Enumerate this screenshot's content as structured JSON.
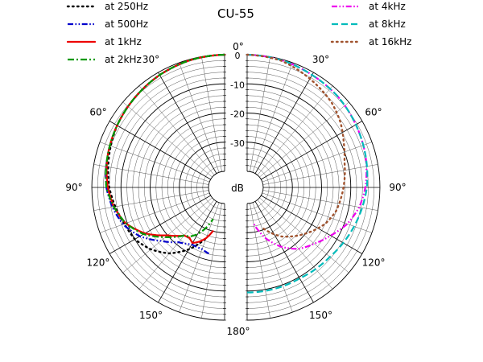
{
  "chart_data": {
    "type": "polar-line",
    "title": "CU-55",
    "r_unit_label": "dB",
    "r_ticks": [
      "0",
      "-10",
      "-20",
      "-30"
    ],
    "r_range": [
      -40,
      0
    ],
    "angle_labels": {
      "top": "0°",
      "bottom": "180°",
      "right": [
        "30°",
        "60°",
        "90°",
        "120°",
        "150°"
      ],
      "left": [
        "30°",
        "60°",
        "90°",
        "120°",
        "150°"
      ]
    },
    "legend_left": [
      "at 250Hz",
      "at 500Hz",
      "at 1kHz",
      "at 2kHz"
    ],
    "legend_right": [
      "at 4kHz",
      "at 8kHz",
      "at 16kHz"
    ],
    "series": [
      {
        "name": "at 250Hz",
        "side": "left",
        "color": "#000000",
        "dash": "dot",
        "angles": [
          0,
          15,
          30,
          45,
          60,
          75,
          90,
          100,
          110,
          120,
          130,
          140,
          150,
          160
        ],
        "values": [
          0,
          -0.3,
          -1,
          -2,
          -3,
          -4.5,
          -6,
          -7.5,
          -9,
          -10,
          -12.5,
          -16,
          -21,
          -27
        ]
      },
      {
        "name": "at 500Hz",
        "side": "left",
        "color": "#0000cc",
        "dash": "dashdotdot",
        "angles": [
          0,
          15,
          30,
          45,
          60,
          75,
          90,
          100,
          110,
          120,
          130,
          140,
          150,
          160,
          168
        ],
        "values": [
          0,
          -0.3,
          -1,
          -2,
          -3,
          -4,
          -5,
          -6.5,
          -8.5,
          -12,
          -17,
          -21,
          -23,
          -23,
          -22
        ]
      },
      {
        "name": "at 1kHz",
        "side": "left",
        "color": "#ee0000",
        "dash": "solid",
        "angles": [
          0,
          15,
          30,
          45,
          60,
          75,
          90,
          100,
          110,
          120,
          130,
          140,
          145,
          150,
          155,
          160,
          165
        ],
        "values": [
          0,
          -0.3,
          -1,
          -2,
          -3,
          -4,
          -5.5,
          -7,
          -9.5,
          -14,
          -20,
          -24,
          -24.5,
          -23.5,
          -25,
          -27,
          -30
        ]
      },
      {
        "name": "at 2kHz",
        "side": "left",
        "color": "#009900",
        "dash": "dashdot",
        "angles": [
          0,
          15,
          30,
          45,
          60,
          75,
          90,
          100,
          110,
          120,
          130,
          140,
          145,
          150,
          155,
          160
        ],
        "values": [
          0,
          -0.3,
          -1,
          -2,
          -3,
          -4,
          -5,
          -7,
          -9.5,
          -13.5,
          -19,
          -24,
          -25,
          -27,
          -30,
          -34
        ]
      },
      {
        "name": "at 4kHz",
        "side": "right",
        "color": "#ee00ee",
        "dash": "dashdotdot",
        "angles": [
          0,
          15,
          30,
          45,
          60,
          75,
          90,
          100,
          110,
          120,
          130,
          140,
          150,
          160,
          170
        ],
        "values": [
          0,
          -0.3,
          -1,
          -1.5,
          -2.5,
          -3.5,
          -5,
          -6.5,
          -9,
          -12.5,
          -15.5,
          -18,
          -22,
          -27,
          -33
        ]
      },
      {
        "name": "at 8kHz",
        "side": "right",
        "color": "#00bbbb",
        "dash": "dash",
        "angles": [
          0,
          15,
          30,
          45,
          60,
          75,
          90,
          100,
          110,
          120,
          130,
          140,
          150,
          160,
          170,
          180
        ],
        "values": [
          0,
          -0.3,
          -1,
          -1.5,
          -2.5,
          -3.5,
          -4.5,
          -5.5,
          -6.5,
          -7.5,
          -8.5,
          -9,
          -9.5,
          -9.5,
          -9.5,
          -9.5
        ]
      },
      {
        "name": "at 16kHz",
        "side": "right",
        "color": "#a0522d",
        "dash": "dot",
        "angles": [
          0,
          15,
          30,
          45,
          55,
          65,
          75,
          85,
          95,
          105,
          115,
          125,
          135,
          145,
          155,
          160
        ],
        "values": [
          0,
          -0.5,
          -2.5,
          -4.5,
          -6.5,
          -9,
          -11,
          -12,
          -13,
          -14,
          -16,
          -19,
          -22,
          -25,
          -29,
          -31
        ]
      }
    ]
  }
}
